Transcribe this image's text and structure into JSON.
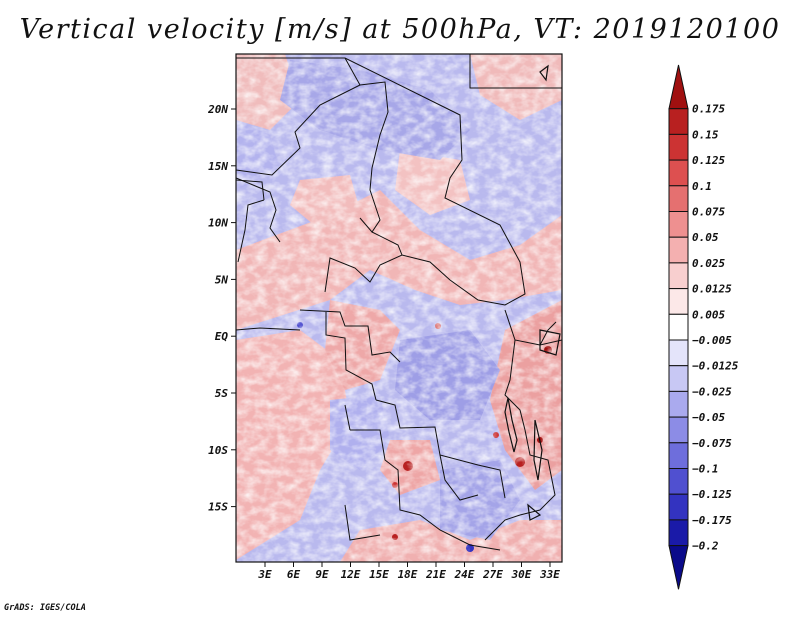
{
  "title": "Vertical velocity [m/s] at 500hPa, VT: 2019120100",
  "credit": "GrADS: IGES/COLA",
  "map": {
    "variable": "Vertical velocity",
    "units": "m/s",
    "level": "500hPa",
    "valid_time": "2019120100",
    "lat_labels": [
      "20N",
      "15N",
      "10N",
      "5N",
      "EQ",
      "5S",
      "10S",
      "15S"
    ],
    "lon_labels": [
      "3E",
      "6E",
      "9E",
      "12E",
      "15E",
      "18E",
      "21E",
      "24E",
      "27E",
      "30E",
      "33E"
    ]
  },
  "colorbar": {
    "levels": [
      "0.175",
      "0.15",
      "0.125",
      "0.1",
      "0.075",
      "0.05",
      "0.025",
      "0.0125",
      "0.005",
      "−0.005",
      "−0.0125",
      "−0.025",
      "−0.05",
      "−0.075",
      "−0.1",
      "−0.125",
      "−0.175",
      "−0.2"
    ],
    "colors": [
      "#a01010",
      "#b82020",
      "#cc3333",
      "#dd5050",
      "#e57070",
      "#ee9090",
      "#f4b0b0",
      "#f8cfcf",
      "#fce8e8",
      "#ffffff",
      "#e4e4fa",
      "#c8c8f4",
      "#aaaaee",
      "#8c8ce6",
      "#6e6edc",
      "#5050d0",
      "#3333c0",
      "#1a1aa8",
      "#0a0a8a"
    ]
  }
}
